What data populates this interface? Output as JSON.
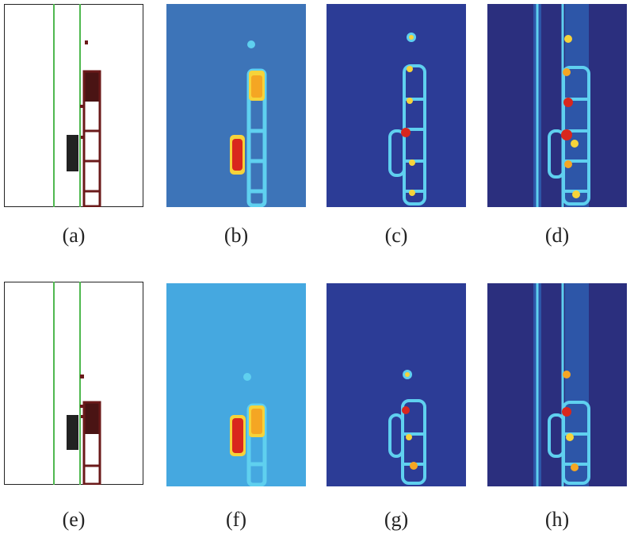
{
  "captions": [
    "(a)",
    "(b)",
    "(c)",
    "(d)",
    "(e)",
    "(f)",
    "(g)",
    "(h)"
  ],
  "colors": {
    "lane_line": "#4fb84f",
    "vehicle_dark": "#222222",
    "occupancy_maroon": "#4a1414",
    "grid_stroke": "#6b1a1a",
    "heat_blue_medium": "#3d74b8",
    "heat_light_blue": "#45a8e0",
    "heat_navy": "#2c3c96",
    "heat_dark_navy": "#2b2f7e",
    "heat_cyan": "#5fd0ef",
    "heat_yellow": "#f6d33a",
    "heat_orange": "#f5a623",
    "heat_red": "#d9271d"
  }
}
